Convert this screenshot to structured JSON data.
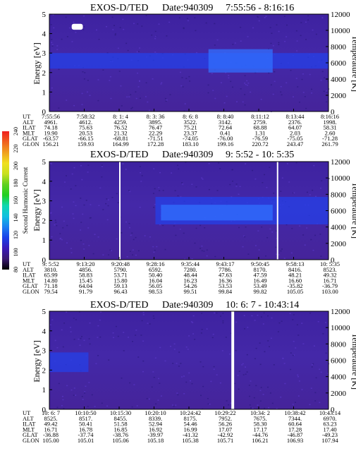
{
  "chart_data": [
    {
      "type": "heatmap",
      "title": "EXOS-D/TED",
      "date_label": "Date:940309",
      "time_range": "7:55:56 - 8:16:16",
      "ylabel": "Energy [eV]",
      "ylim": [
        0,
        5
      ],
      "yticks": [
        "0",
        "1",
        "2",
        "3",
        "4",
        "5"
      ],
      "y2label": "Temperature [K]",
      "y2lim": [
        0,
        12000
      ],
      "y2ticks": [
        "0",
        "2000",
        "4000",
        "6000",
        "8000",
        "10000",
        "12000"
      ],
      "ephemeris_labels": [
        "UT",
        "ALT",
        "ILAT",
        "MLT",
        "GLAT",
        "GLON"
      ],
      "ephemeris_columns": [
        [
          "7:55:56",
          "4961.",
          "74.18",
          "19.90",
          "-63.57",
          "156.21"
        ],
        [
          "7:58:32",
          "4612.",
          "75.63",
          "20.53",
          "-66.15",
          "159.93"
        ],
        [
          "8: 1: 4",
          "4259.",
          "76.52",
          "21.32",
          "-68.81",
          "164.99"
        ],
        [
          "8: 3: 36",
          "3895.",
          "76.47",
          "22.29",
          "-71.51",
          "172.28"
        ],
        [
          "8: 6: 8",
          "3522.",
          "75.21",
          "23.37",
          "-74.05",
          "183.10"
        ],
        [
          "8: 8:40",
          "3142.",
          "72.64",
          "0.41",
          "-76.00",
          "199.16"
        ],
        [
          "8:11:12",
          "2759.",
          "68.88",
          "1.31",
          "-76.59",
          "220.72"
        ],
        [
          "8:13:44",
          "2376.",
          "64.07",
          "2.03",
          "-75.05",
          "243.47"
        ],
        [
          "8:16:16",
          "1998.",
          "58.31",
          "2.60",
          "-71.28",
          "261.79"
        ]
      ],
      "features": [
        {
          "kind": "band",
          "x": [
            0.0,
            1.0
          ],
          "energy_eV": [
            2.2,
            3.0
          ],
          "level": "blue"
        },
        {
          "kind": "band",
          "x": [
            0.57,
            0.8
          ],
          "energy_eV": [
            2.0,
            3.2
          ],
          "level": "light-blue"
        },
        {
          "kind": "spot",
          "x": [
            0.08,
            0.12
          ],
          "energy_eV": [
            4.2,
            4.5
          ],
          "level": "white"
        }
      ]
    },
    {
      "type": "heatmap",
      "title": "EXOS-D/TED",
      "date_label": "Date:940309",
      "time_range": "9: 5:52 - 10: 5:35",
      "ylabel": "Energy [eV]",
      "ylim": [
        0,
        5
      ],
      "yticks": [
        "0",
        "1",
        "2",
        "3",
        "4",
        "5"
      ],
      "y2label": "Temperature [K]",
      "y2lim": [
        0,
        12000
      ],
      "y2ticks": [
        "0",
        "2000",
        "4000",
        "6000",
        "8000",
        "10000",
        "12000"
      ],
      "ephemeris_labels": [
        "UT",
        "ALT",
        "ILAT",
        "MLT",
        "GLAT",
        "GLON"
      ],
      "ephemeris_columns": [
        [
          "9: 5:52",
          "3810.",
          "65.99",
          "14.80",
          "71.18",
          "79.54"
        ],
        [
          "9:13:20",
          "4856.",
          "58.83",
          "15.45",
          "64.04",
          "91.79"
        ],
        [
          "9:20:48",
          "5790.",
          "53.71",
          "15.80",
          "59.13",
          "96.43"
        ],
        [
          "9:28:16",
          "6592.",
          "50.40",
          "16.04",
          "56.05",
          "98.53"
        ],
        [
          "9:35:44",
          "7280.",
          "48.44",
          "16.23",
          "54.26",
          "99.51"
        ],
        [
          "9:43:17",
          "7786.",
          "47.63",
          "16.36",
          "53.53",
          "99.84"
        ],
        [
          "9:50:45",
          "8170.",
          "47.59",
          "16.49",
          "53.49",
          "99.82"
        ],
        [
          "9:58:13",
          "8416.",
          "48.21",
          "16.60",
          "-35.82",
          "105.05"
        ],
        [
          "10: 5:35",
          "8523.",
          "49.32",
          "16.71",
          "-36.79",
          "103.00"
        ]
      ],
      "features": [
        {
          "kind": "band",
          "x": [
            0.38,
            1.0
          ],
          "energy_eV": [
            1.8,
            3.2
          ],
          "level": "blue"
        },
        {
          "kind": "band",
          "x": [
            0.4,
            0.8
          ],
          "energy_eV": [
            2.0,
            2.8
          ],
          "level": "light-blue"
        },
        {
          "kind": "gap",
          "x": [
            0.25,
            0.255
          ]
        },
        {
          "kind": "gap",
          "x": [
            0.815,
            0.82
          ]
        }
      ]
    },
    {
      "type": "heatmap",
      "title": "EXOS-D/TED",
      "date_label": "Date:940309",
      "time_range": "10: 6: 7 - 10:43:14",
      "ylabel": "Energy [eV]",
      "ylim": [
        0,
        5
      ],
      "yticks": [
        "0",
        "1",
        "2",
        "3",
        "4",
        "5"
      ],
      "y2label": "Temperature [K]",
      "y2lim": [
        0,
        12000
      ],
      "y2ticks": [
        "0",
        "2000",
        "4000",
        "6000",
        "8000",
        "10000",
        "12000"
      ],
      "ephemeris_labels": [
        "UT",
        "ALT",
        "ILAT",
        "MLT",
        "GLAT",
        "GLON"
      ],
      "ephemeris_columns": [
        [
          "10: 6: 7",
          "8525.",
          "49.42",
          "16.71",
          "-36.88",
          "105.00"
        ],
        [
          "10:10:50",
          "8517.",
          "50.41",
          "16.78",
          "-37.74",
          "105.01"
        ],
        [
          "10:15:30",
          "8455.",
          "51.58",
          "16.85",
          "-38.76",
          "105.06"
        ],
        [
          "10:20:10",
          "8339.",
          "52.94",
          "16.92",
          "-39.97",
          "105.18"
        ],
        [
          "10:24:42",
          "8175.",
          "54.46",
          "16.99",
          "-41.32",
          "105.38"
        ],
        [
          "10:29:22",
          "7952.",
          "56.26",
          "17.07",
          "-42.92",
          "105.71"
        ],
        [
          "10:34: 2",
          "7675.",
          "58.30",
          "17.17",
          "-44.76",
          "106.21"
        ],
        [
          "10:38:42",
          "7344.",
          "60.64",
          "17.28",
          "-46.87",
          "106.93"
        ],
        [
          "10:43:14",
          "6970.",
          "63.23",
          "17.40",
          "-49.23",
          "107.94"
        ]
      ],
      "features": [
        {
          "kind": "band",
          "x": [
            0.0,
            0.14
          ],
          "energy_eV": [
            1.9,
            2.9
          ],
          "level": "blue"
        },
        {
          "kind": "gap",
          "x": [
            0.652,
            0.662
          ]
        }
      ]
    }
  ],
  "colorbar": {
    "label": "Second Harmonic Current",
    "ticks": [
      "80",
      "100",
      "120",
      "140",
      "160",
      "180",
      "200",
      "220",
      "240"
    ],
    "colors": [
      "#000000",
      "#3a1a70",
      "#3a1ab8",
      "#1a40e8",
      "#1a80f0",
      "#10c0e0",
      "#10d8b0",
      "#20d020",
      "#60d020",
      "#c8e020",
      "#f0e020",
      "#f0a020",
      "#f06020",
      "#f02020"
    ]
  }
}
